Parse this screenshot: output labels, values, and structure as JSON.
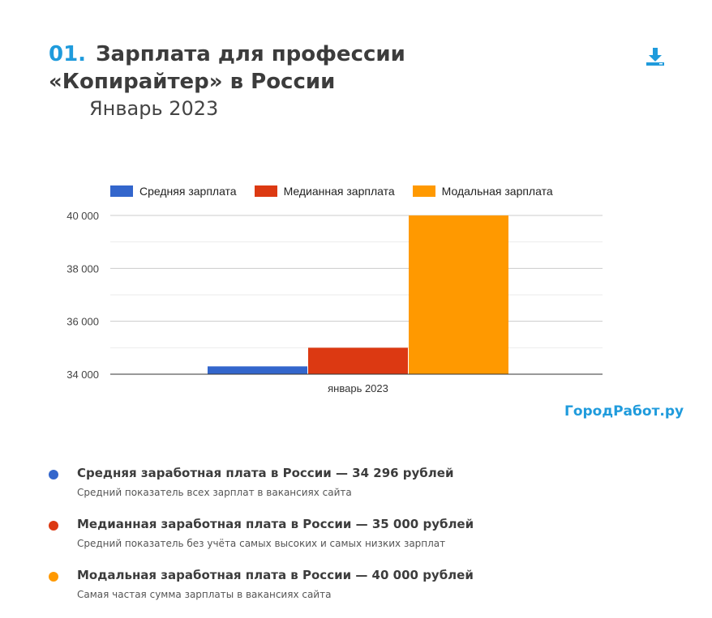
{
  "header": {
    "number": "01.",
    "title": "Зарплата для профессии «Копирайтер» в России",
    "subtitle": "Январь 2023",
    "download_icon": "download-icon"
  },
  "brand": "ГородРабот.ру",
  "colors": {
    "accent": "#1f9bdc",
    "series": [
      "#3366cc",
      "#dc3912",
      "#ff9900"
    ]
  },
  "chart_data": {
    "type": "bar",
    "categories": [
      "январь 2023"
    ],
    "series": [
      {
        "name": "Средняя зарплата",
        "values": [
          34296
        ],
        "color": "#3366cc"
      },
      {
        "name": "Медианная зарплата",
        "values": [
          35000
        ],
        "color": "#dc3912"
      },
      {
        "name": "Модальная зарплата",
        "values": [
          40000
        ],
        "color": "#ff9900"
      }
    ],
    "ylim": [
      34000,
      40000
    ],
    "yticks": [
      34000,
      36000,
      38000,
      40000
    ],
    "ytick_labels": [
      "34 000",
      "36 000",
      "38 000",
      "40 000"
    ],
    "xlabel": "",
    "ylabel": "",
    "grid": true,
    "legend": "top"
  },
  "notes": [
    {
      "color": "#3366cc",
      "title": "Средняя заработная плата в России — 34 296 рублей",
      "text": "Средний показатель всех зарплат в вакансиях сайта"
    },
    {
      "color": "#dc3912",
      "title": "Медианная заработная плата в России — 35 000 рублей",
      "text": "Средний показатель без учёта самых высоких и самых низких зарплат"
    },
    {
      "color": "#ff9900",
      "title": "Модальная заработная плата в России — 40 000 рублей",
      "text": "Самая частая сумма зарплаты в вакансиях сайта"
    }
  ]
}
